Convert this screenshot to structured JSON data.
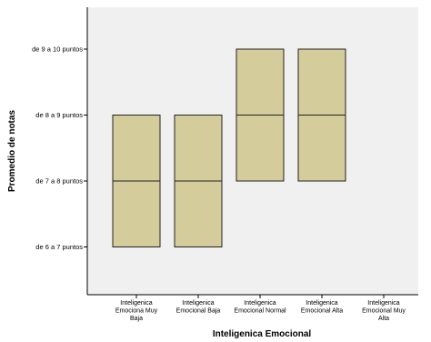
{
  "chart_data": {
    "type": "bar",
    "subtype": "stacked-range",
    "xlabel": "Inteligenica Emocional",
    "ylabel": "Promedio de notas",
    "y_levels": [
      "de 6 a 7 puntos",
      "de 7 a 8 puntos",
      "de 8 a 9 puntos",
      "de 9 a 10 puntos"
    ],
    "categories": [
      {
        "lines": [
          "Inteligenica",
          "Emociona Muy",
          "Baja"
        ]
      },
      {
        "lines": [
          "Inteligenica",
          "Emocional Baja"
        ]
      },
      {
        "lines": [
          "Inteligenica",
          "Emocional Normal"
        ]
      },
      {
        "lines": [
          "Inteligenica",
          "Emocional Alta"
        ]
      },
      {
        "lines": [
          "Inteligenica",
          "Emocional Muy",
          "Alta"
        ]
      }
    ],
    "bars": [
      {
        "low": 0,
        "mid": 1,
        "high": 2
      },
      {
        "low": 0,
        "mid": 1,
        "high": 2
      },
      {
        "low": 1,
        "mid": 2,
        "high": 3
      },
      {
        "low": 1,
        "mid": 2,
        "high": 3
      },
      null
    ],
    "colors": {
      "plot_bg": "#f0f0f0",
      "bar_fill": "#d4cc9a",
      "bar_stroke": "#222222"
    }
  }
}
